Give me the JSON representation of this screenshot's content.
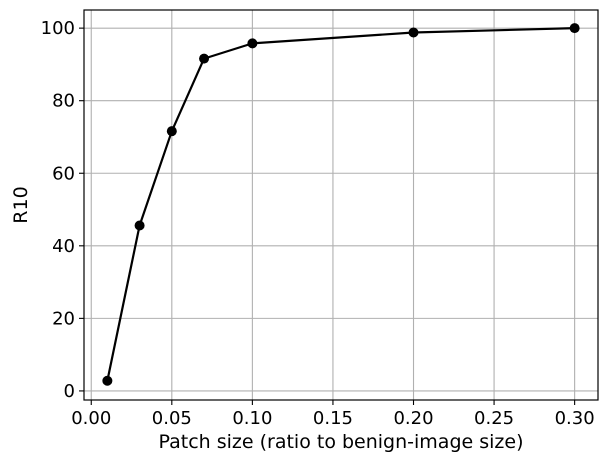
{
  "chart_data": {
    "type": "line",
    "title": "",
    "xlabel": "Patch size (ratio to benign-image size)",
    "ylabel": "R10",
    "x": [
      0.01,
      0.03,
      0.05,
      0.07,
      0.1,
      0.2,
      0.3
    ],
    "series": [
      {
        "values": [
          2.8,
          45.6,
          71.6,
          91.6,
          95.8,
          98.8,
          100.0
        ]
      }
    ],
    "xlim": [
      -0.0045,
      0.3145
    ],
    "ylim": [
      -2.5,
      105
    ],
    "xticks": [
      0.0,
      0.05,
      0.1,
      0.15,
      0.2,
      0.25,
      0.3
    ],
    "xtick_labels": [
      "0.00",
      "0.05",
      "0.10",
      "0.15",
      "0.20",
      "0.25",
      "0.30"
    ],
    "yticks": [
      0,
      20,
      40,
      60,
      80,
      100
    ],
    "ytick_labels": [
      "0",
      "20",
      "40",
      "60",
      "80",
      "100"
    ],
    "grid": true,
    "line_color": "#000000",
    "marker": "circle",
    "grid_color": "#b0b0b0"
  }
}
